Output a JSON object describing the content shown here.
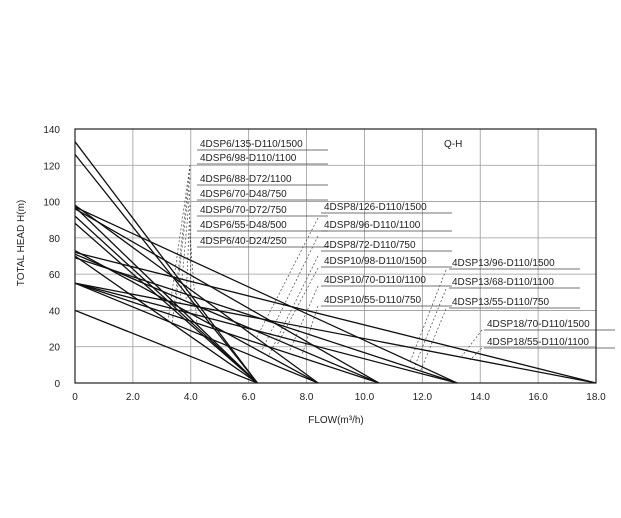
{
  "chart_data": {
    "type": "line",
    "xlabel": "FLOW(m³/h)",
    "ylabel": "TOTAL HEAD H(m)",
    "curve_label": "Q-H",
    "xlim": [
      0,
      18
    ],
    "ylim": [
      0,
      140
    ],
    "x_ticks": [
      0,
      2,
      4,
      6,
      8,
      10,
      12,
      14,
      16,
      18
    ],
    "x_tick_labels": [
      "0",
      "2.0",
      "4.0",
      "6.0",
      "8.0",
      "10.0",
      "12.0",
      "14.0",
      "16.0",
      "18.0"
    ],
    "y_ticks": [
      0,
      20,
      40,
      60,
      80,
      100,
      120,
      140
    ],
    "y_tick_labels": [
      "0",
      "20",
      "40",
      "60",
      "80",
      "100",
      "120",
      "140"
    ],
    "grid": true,
    "series": [
      {
        "name": "4DSP6/135-D110/1500",
        "points": [
          [
            0,
            133
          ],
          [
            6.3,
            0
          ]
        ]
      },
      {
        "name": "4DSP6/98-D110/1100",
        "points": [
          [
            0,
            126
          ],
          [
            6.3,
            0
          ]
        ]
      },
      {
        "name": "4DSP6/88-D72/1100",
        "points": [
          [
            0,
            97
          ],
          [
            6.3,
            0
          ]
        ]
      },
      {
        "name": "4DSP6/70-D48/750",
        "points": [
          [
            0,
            92
          ],
          [
            6.3,
            0
          ]
        ]
      },
      {
        "name": "4DSP6/70-D72/750",
        "points": [
          [
            0,
            88
          ],
          [
            6.3,
            0
          ]
        ]
      },
      {
        "name": "4DSP6/55-D48/500",
        "points": [
          [
            0,
            70
          ],
          [
            6.3,
            0
          ]
        ]
      },
      {
        "name": "4DSP6/40-D24/250",
        "points": [
          [
            0,
            40
          ],
          [
            6.3,
            0
          ]
        ]
      },
      {
        "name": "4DSP8/126-D110/1500",
        "points": [
          [
            0,
            98
          ],
          [
            8.4,
            0
          ]
        ]
      },
      {
        "name": "4DSP8/96-D110/1100",
        "points": [
          [
            0,
            73
          ],
          [
            8.4,
            0
          ]
        ]
      },
      {
        "name": "4DSP8/72-D110/750",
        "points": [
          [
            0,
            55
          ],
          [
            8.4,
            0
          ]
        ]
      },
      {
        "name": "4DSP10/98-D110/1500",
        "points": [
          [
            0,
            96
          ],
          [
            10.5,
            0
          ]
        ]
      },
      {
        "name": "4DSP10/70-D110/1100",
        "points": [
          [
            0,
            71
          ],
          [
            10.5,
            0
          ]
        ]
      },
      {
        "name": "4DSP10/55-D110/750",
        "points": [
          [
            0,
            55
          ],
          [
            10.5,
            0
          ]
        ]
      },
      {
        "name": "4DSP13/96-D110/1500",
        "points": [
          [
            0,
            97
          ],
          [
            13.2,
            0
          ]
        ]
      },
      {
        "name": "4DSP13/68-D110/1100",
        "points": [
          [
            0,
            69
          ],
          [
            13.2,
            0
          ]
        ]
      },
      {
        "name": "4DSP13/55-D110/750",
        "points": [
          [
            0,
            55
          ],
          [
            13.2,
            0
          ]
        ]
      },
      {
        "name": "4DSP18/70-D110/1500",
        "points": [
          [
            0,
            72
          ],
          [
            18,
            0
          ]
        ]
      },
      {
        "name": "4DSP18/55-D110/1100",
        "points": [
          [
            0,
            55
          ],
          [
            18,
            0
          ]
        ]
      }
    ]
  }
}
